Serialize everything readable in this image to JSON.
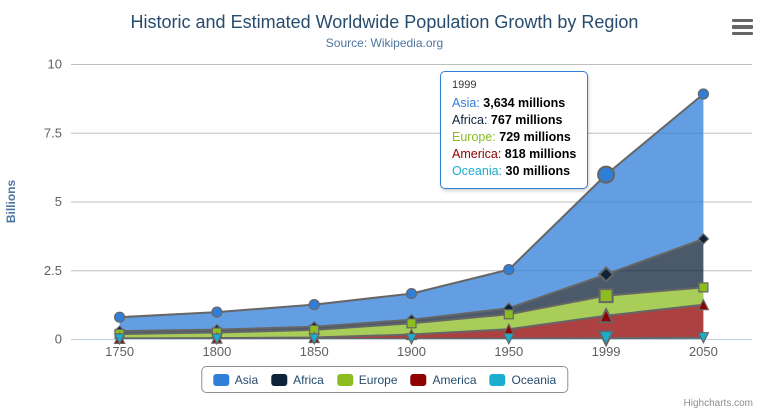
{
  "header": {
    "title": "Historic and Estimated Worldwide Population Growth by Region",
    "subtitle": "Source: Wikipedia.org"
  },
  "colors": {
    "title_text": "#274b6d",
    "subtitle_text": "#4d759e",
    "axis_label": "#606060",
    "axis_title": "#4d759e",
    "grid_line": "#C0C0C0",
    "axis_line": "#C0D0E0",
    "series_outline": "#666666",
    "tooltip_border": "#2f7ed8",
    "legend_border": "#909090",
    "legend_text": "#274b6d",
    "credits_text": "#909090",
    "menu_icon": "#666666"
  },
  "chart_data": {
    "type": "area",
    "stacking": "normal",
    "title": "Historic and Estimated Worldwide Population Growth by Region",
    "subtitle": "Source: Wikipedia.org",
    "xlabel": "",
    "ylabel": "Billions",
    "unit": "millions",
    "ylim": [
      0,
      10
    ],
    "ytick_values": [
      0,
      2.5,
      5,
      7.5,
      10
    ],
    "ytick_labels": [
      "0",
      "2.5",
      "5",
      "7.5",
      "10"
    ],
    "grid": true,
    "legend_position": "bottom-center",
    "categories": [
      "1750",
      "1800",
      "1850",
      "1900",
      "1950",
      "1999",
      "2050"
    ],
    "hover_index": 5,
    "area_fill_opacity": 0.75,
    "series": [
      {
        "name": "Asia",
        "color": "#2f7ed8",
        "marker": "circle",
        "values_millions": [
          502,
          635,
          809,
          947,
          1402,
          3634,
          5268
        ]
      },
      {
        "name": "Africa",
        "color": "#0d233a",
        "marker": "diamond",
        "values_millions": [
          106,
          107,
          111,
          133,
          221,
          767,
          1766
        ]
      },
      {
        "name": "Europe",
        "color": "#8bbc21",
        "marker": "square",
        "values_millions": [
          163,
          203,
          276,
          408,
          547,
          729,
          628
        ]
      },
      {
        "name": "America",
        "color": "#910000",
        "marker": "triangle",
        "values_millions": [
          18,
          31,
          54,
          156,
          339,
          818,
          1201
        ]
      },
      {
        "name": "Oceania",
        "color": "#1aadce",
        "marker": "triangle-down",
        "values_millions": [
          2,
          2,
          2,
          6,
          13,
          30,
          46
        ]
      }
    ]
  },
  "tooltip": {
    "header": "1999",
    "rows": [
      {
        "name": "Asia",
        "value": "3,634 millions"
      },
      {
        "name": "Africa",
        "value": "767 millions"
      },
      {
        "name": "Europe",
        "value": "729 millions"
      },
      {
        "name": "America",
        "value": "818 millions"
      },
      {
        "name": "Oceania",
        "value": "30 millions"
      }
    ]
  },
  "credits": "Highcharts.com"
}
